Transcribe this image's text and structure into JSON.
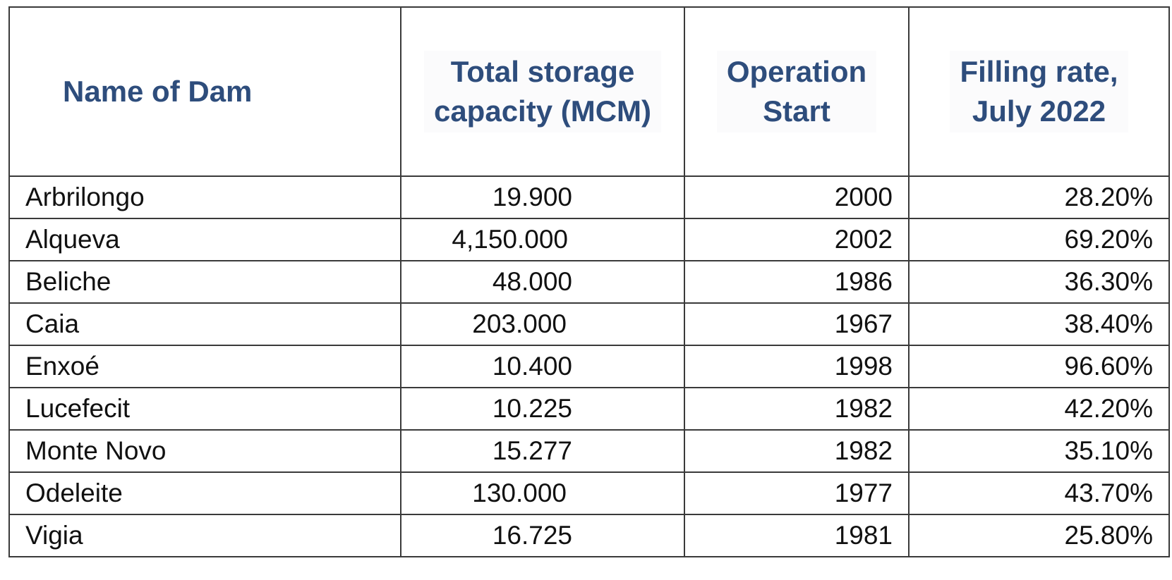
{
  "table": {
    "headers": {
      "name": "Name of Dam",
      "capacity_line1": "Total storage",
      "capacity_line2": "capacity (MCM)",
      "start_line1": "Operation",
      "start_line2": "Start",
      "rate_line1": "Filling rate,",
      "rate_line2": "July 2022"
    },
    "rows": [
      {
        "name": "Arbrilongo",
        "capacity": "19.900",
        "start": "2000",
        "rate": "28.20%"
      },
      {
        "name": "Alqueva",
        "capacity": "4,150.000",
        "start": "2002",
        "rate": "69.20%"
      },
      {
        "name": "Beliche",
        "capacity": "48.000",
        "start": "1986",
        "rate": "36.30%"
      },
      {
        "name": "Caia",
        "capacity": "203.000",
        "start": "1967",
        "rate": "38.40%"
      },
      {
        "name": "Enxoé",
        "capacity": "10.400",
        "start": "1998",
        "rate": "96.60%"
      },
      {
        "name": "Lucefecit",
        "capacity": "10.225",
        "start": "1982",
        "rate": "42.20%"
      },
      {
        "name": "Monte Novo",
        "capacity": "15.277",
        "start": "1982",
        "rate": "35.10%"
      },
      {
        "name": "Odeleite",
        "capacity": "130.000",
        "start": "1977",
        "rate": "43.70%"
      },
      {
        "name": "Vigia",
        "capacity": "16.725",
        "start": "1981",
        "rate": "25.80%"
      }
    ]
  }
}
